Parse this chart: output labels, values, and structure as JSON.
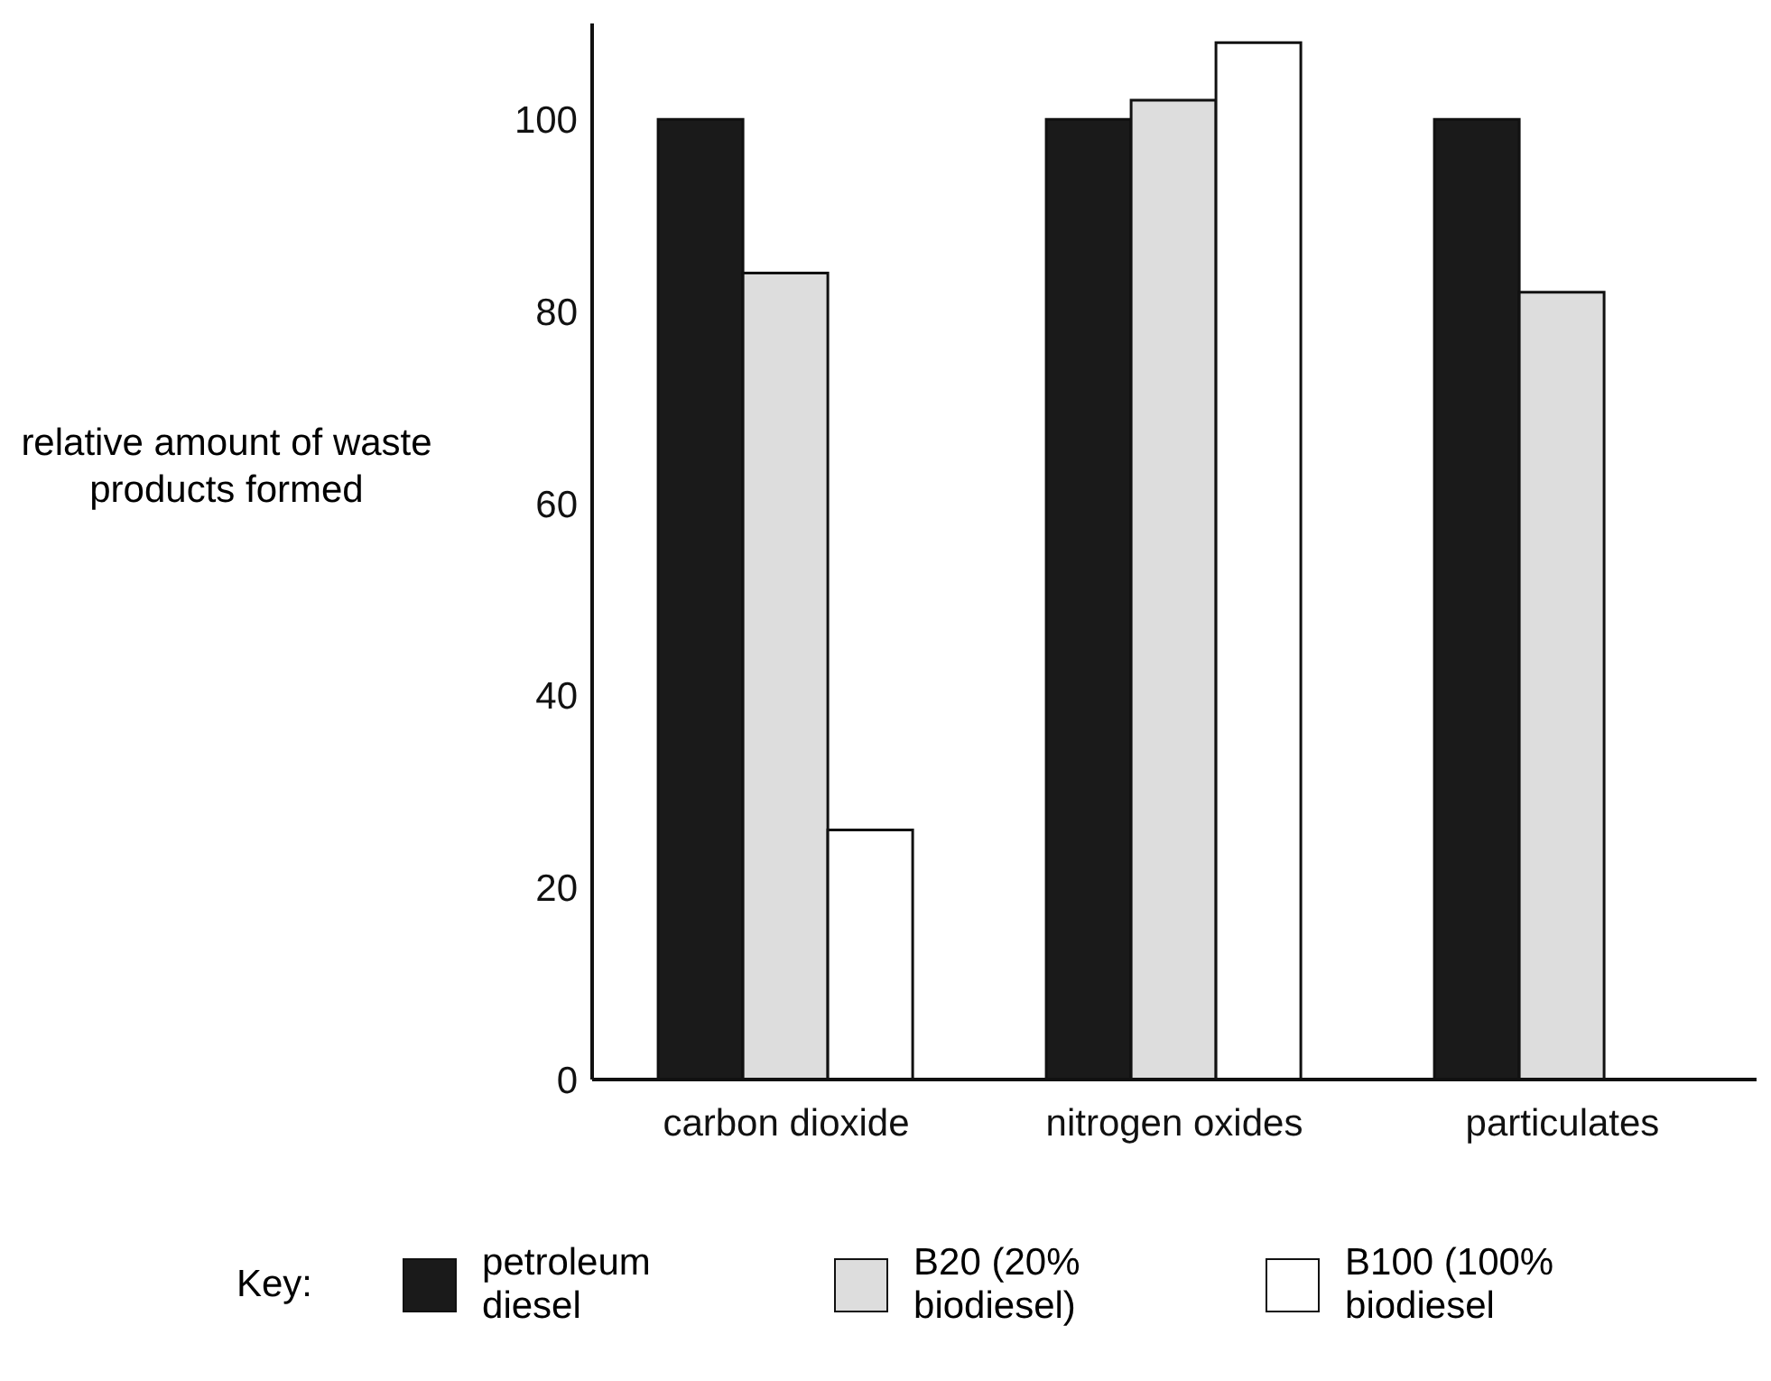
{
  "chart_data": {
    "type": "bar",
    "ylabel": "relative amount of waste products formed",
    "legend_title": "Key:",
    "categories": [
      "carbon dioxide",
      "nitrogen oxides",
      "particulates"
    ],
    "series": [
      {
        "name": "petroleum diesel",
        "color": "#1a1a1a",
        "values": [
          100,
          100,
          100
        ]
      },
      {
        "name": "B20 (20% biodiesel)",
        "color": "#dddddd",
        "values": [
          84,
          102,
          82
        ]
      },
      {
        "name": "B100 (100% biodiesel",
        "color": "#ffffff",
        "values": [
          26,
          108,
          null
        ]
      }
    ],
    "ylim": [
      0,
      110
    ],
    "yticks": [
      0,
      20,
      40,
      60,
      80,
      100
    ],
    "grid": false,
    "legend": "bottom"
  }
}
